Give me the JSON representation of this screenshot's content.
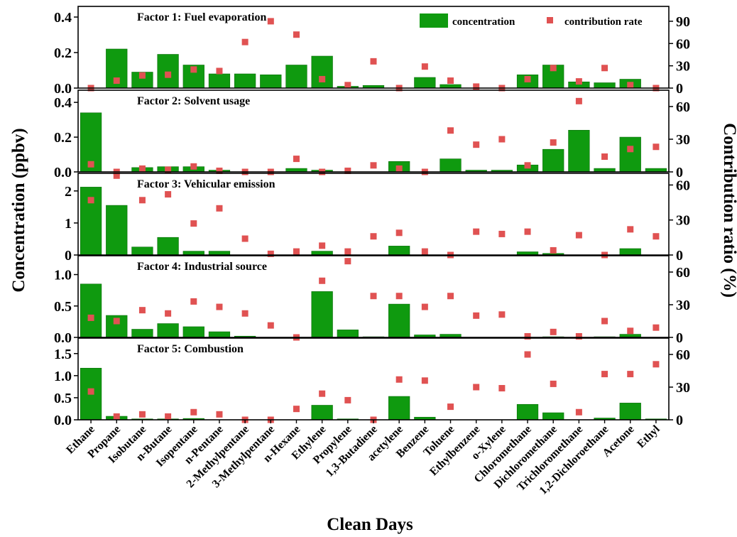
{
  "colors": {
    "bar": "#0f9a0f",
    "bar_stroke": "#0a6e0a",
    "marker": "#e05252",
    "axis": "#000000"
  },
  "x_title": "Clean Days",
  "y_left_title": "Concentration (ppbv)",
  "y_right_title": "Contribution ratio (%)",
  "legend": {
    "bar_label": "concentration",
    "marker_label": "contribution rate",
    "placement": "top-right of first panel"
  },
  "chart_data": {
    "type": "bar",
    "categories": [
      "Ethane",
      "Propane",
      "Isobutane",
      "n-Butane",
      "Isopentane",
      "n-Pentane",
      "2-Methylpentane",
      "3-Methylpentane",
      "n-Hexane",
      "Ethylene",
      "Propylene",
      "1,3-Butadiene",
      "acetylene",
      "Benzene",
      "Toluene",
      "Ethylbenzene",
      "o-Xylene",
      "Chloromethane",
      "Dichloromethane",
      "Trichloromethane",
      "1,2-Dichloroethane",
      "Acetone",
      "Ethyl"
    ],
    "panels": [
      {
        "title": "Factor 1: Fuel evaporation",
        "left_ticks": [
          0.0,
          0.2,
          0.4
        ],
        "left_ylim": [
          0,
          0.46
        ],
        "right_ticks": [
          0,
          30,
          60,
          90
        ],
        "right_ylim": [
          0,
          110
        ],
        "series": [
          {
            "name": "concentration",
            "values": [
              0.0,
              0.22,
              0.09,
              0.19,
              0.13,
              0.08,
              0.08,
              0.075,
              0.13,
              0.18,
              0.01,
              0.015,
              0.0,
              0.06,
              0.02,
              0.0,
              0.0,
              0.075,
              0.13,
              0.035,
              0.03,
              0.05,
              0.0
            ]
          },
          {
            "name": "contribution rate",
            "values": [
              0,
              10,
              17,
              18,
              25,
              23,
              62,
              90,
              72,
              12,
              4,
              36,
              0,
              29,
              10,
              2,
              0,
              12,
              27,
              9,
              27,
              4,
              0
            ]
          }
        ]
      },
      {
        "title": "Factor 2: Solvent usage",
        "left_ticks": [
          0.0,
          0.2,
          0.4
        ],
        "left_ylim": [
          0,
          0.47
        ],
        "right_ticks": [
          0,
          30,
          60
        ],
        "right_ylim": [
          0,
          75
        ],
        "series": [
          {
            "name": "concentration",
            "values": [
              0.34,
              0.0,
              0.025,
              0.03,
              0.03,
              0.01,
              0.0,
              0.0,
              0.02,
              0.01,
              0.0,
              0.0,
              0.06,
              0.0,
              0.075,
              0.01,
              0.01,
              0.04,
              0.13,
              0.24,
              0.02,
              0.2,
              0.02
            ]
          },
          {
            "name": "contribution rate",
            "values": [
              7,
              0,
              3,
              2,
              5,
              1,
              0,
              0,
              12,
              0,
              1,
              6,
              3,
              0,
              38,
              25,
              30,
              6,
              27,
              65,
              14,
              21,
              23
            ]
          }
        ]
      },
      {
        "title": "Factor 3: Vehicular emission",
        "left_ticks": [
          0,
          1,
          2
        ],
        "left_ylim": [
          0,
          2.55
        ],
        "right_ticks": [
          0,
          30,
          60
        ],
        "right_ylim": [
          0,
          70
        ],
        "series": [
          {
            "name": "concentration",
            "values": [
              2.12,
              1.55,
              0.25,
              0.55,
              0.12,
              0.12,
              0.0,
              0.0,
              0.0,
              0.12,
              0.0,
              0.0,
              0.28,
              0.0,
              0.0,
              0.0,
              0.0,
              0.1,
              0.05,
              0.0,
              0.0,
              0.2,
              0.0
            ]
          },
          {
            "name": "contribution rate",
            "values": [
              47,
              68,
              47,
              52,
              27,
              40,
              14,
              1,
              3,
              8,
              3,
              16,
              19,
              3,
              0,
              20,
              18,
              20,
              4,
              17,
              0,
              22,
              16
            ]
          }
        ]
      },
      {
        "title": "Factor 4: Industrial source",
        "left_ticks": [
          0.0,
          0.5,
          1.0
        ],
        "left_ylim": [
          0,
          1.3
        ],
        "right_ticks": [
          0,
          30,
          60
        ],
        "right_ylim": [
          0,
          75
        ],
        "series": [
          {
            "name": "concentration",
            "values": [
              0.85,
              0.35,
              0.13,
              0.22,
              0.17,
              0.09,
              0.02,
              0.0,
              0.0,
              0.73,
              0.12,
              0.01,
              0.53,
              0.04,
              0.05,
              0.0,
              0.0,
              0.0,
              0.01,
              0.0,
              0.01,
              0.05,
              0.0
            ]
          },
          {
            "name": "contribution rate",
            "values": [
              18,
              15,
              25,
              22,
              33,
              28,
              22,
              11,
              0,
              52,
              70,
              38,
              38,
              28,
              38,
              20,
              21,
              1,
              5,
              1,
              15,
              6,
              9
            ]
          }
        ]
      },
      {
        "title": "Factor 5: Combustion",
        "left_ticks": [
          0.0,
          0.5,
          1.0,
          1.5
        ],
        "left_ylim": [
          0,
          1.85
        ],
        "right_ticks": [
          0,
          30,
          60
        ],
        "right_ylim": [
          0,
          75
        ],
        "series": [
          {
            "name": "concentration",
            "values": [
              1.17,
              0.08,
              0.02,
              0.02,
              0.03,
              0.0,
              0.0,
              0.0,
              0.0,
              0.33,
              0.02,
              0.0,
              0.53,
              0.06,
              0.0,
              0.0,
              0.0,
              0.35,
              0.16,
              0.0,
              0.04,
              0.38,
              0.02
            ]
          },
          {
            "name": "contribution rate",
            "values": [
              26,
              3,
              5,
              3,
              7,
              5,
              0,
              0,
              10,
              24,
              18,
              0,
              37,
              36,
              12,
              30,
              29,
              60,
              33,
              7,
              42,
              42,
              51
            ]
          }
        ]
      }
    ]
  }
}
